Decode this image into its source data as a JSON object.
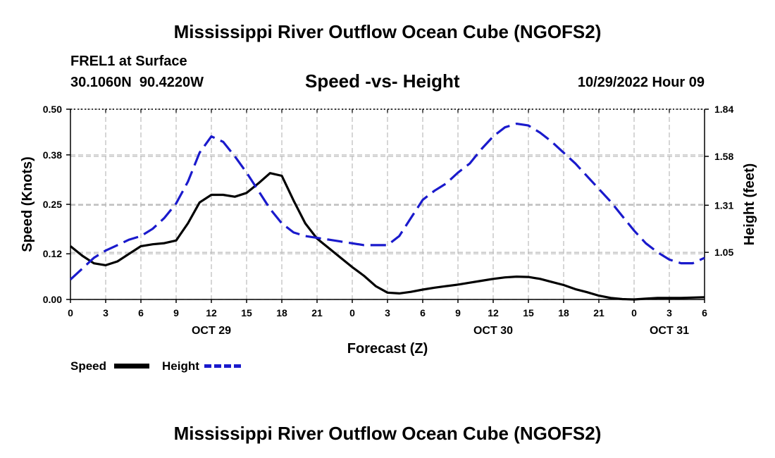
{
  "page": {
    "title_top": "Mississippi River Outflow Ocean Cube (NGOFS2)",
    "title_bottom": "Mississippi River Outflow Ocean Cube (NGOFS2)",
    "station": "FREL1 at Surface",
    "coords": "30.1060N  90.4220W",
    "datetime": "10/29/2022 Hour 09"
  },
  "chart_data": {
    "type": "line",
    "title": "Speed -vs- Height",
    "xlabel": "Forecast (Z)",
    "ylabel": "Speed (Knots)",
    "y2label": "Height (feet)",
    "ylim": [
      0,
      0.5
    ],
    "y2lim": [
      0.79,
      1.84
    ],
    "yticks": [
      "0.00",
      "0.12",
      "0.25",
      "0.38",
      "0.50"
    ],
    "y2ticks": [
      "1.05",
      "1.31",
      "1.58",
      "1.84"
    ],
    "xlim": [
      0,
      54
    ],
    "xticks": [
      "0",
      "3",
      "6",
      "9",
      "12",
      "15",
      "18",
      "21",
      "0",
      "3",
      "6",
      "9",
      "12",
      "15",
      "18",
      "21",
      "0",
      "3",
      "6"
    ],
    "day_labels": [
      {
        "label": "OCT 29",
        "hour": 12
      },
      {
        "label": "OCT 30",
        "hour": 36
      },
      {
        "label": "OCT 31",
        "hour": 51
      }
    ],
    "grid": true,
    "legend": [
      "Speed",
      "Height"
    ],
    "series": [
      {
        "name": "Speed",
        "axis": "left",
        "color": "#000000",
        "dash": "solid",
        "x": [
          0,
          1,
          2,
          3,
          4,
          5,
          6,
          7,
          8,
          9,
          10,
          11,
          12,
          13,
          14,
          15,
          16,
          17,
          18,
          19,
          20,
          21,
          22,
          23,
          24,
          25,
          26,
          27,
          28,
          29,
          30,
          31,
          32,
          33,
          34,
          35,
          36,
          37,
          38,
          39,
          40,
          41,
          42,
          43,
          44,
          45,
          46,
          47,
          48,
          49,
          50,
          51,
          52,
          53,
          54
        ],
        "values": [
          0.14,
          0.115,
          0.095,
          0.09,
          0.1,
          0.12,
          0.14,
          0.145,
          0.148,
          0.155,
          0.2,
          0.255,
          0.275,
          0.275,
          0.27,
          0.28,
          0.305,
          0.332,
          0.325,
          0.26,
          0.2,
          0.16,
          0.135,
          0.11,
          0.085,
          0.062,
          0.035,
          0.018,
          0.016,
          0.02,
          0.026,
          0.031,
          0.035,
          0.039,
          0.044,
          0.049,
          0.054,
          0.058,
          0.06,
          0.059,
          0.054,
          0.046,
          0.038,
          0.027,
          0.019,
          0.01,
          0.004,
          0.001,
          0.0,
          0.002,
          0.004,
          0.004,
          0.004,
          0.005,
          0.006
        ]
      },
      {
        "name": "Height",
        "axis": "right",
        "color": "#1a1acc",
        "dash": "dashed",
        "x": [
          0,
          1,
          2,
          3,
          4,
          5,
          6,
          7,
          8,
          9,
          10,
          11,
          12,
          13,
          14,
          15,
          16,
          17,
          18,
          19,
          20,
          21,
          22,
          23,
          24,
          25,
          26,
          27,
          28,
          29,
          30,
          31,
          32,
          33,
          34,
          35,
          36,
          37,
          38,
          39,
          40,
          41,
          42,
          43,
          44,
          45,
          46,
          47,
          48,
          49,
          50,
          51,
          52,
          53,
          54
        ],
        "values": [
          0.9,
          0.96,
          1.02,
          1.06,
          1.09,
          1.12,
          1.14,
          1.18,
          1.24,
          1.32,
          1.44,
          1.6,
          1.69,
          1.66,
          1.58,
          1.49,
          1.39,
          1.29,
          1.21,
          1.16,
          1.14,
          1.13,
          1.12,
          1.11,
          1.1,
          1.09,
          1.09,
          1.09,
          1.14,
          1.24,
          1.34,
          1.39,
          1.43,
          1.49,
          1.54,
          1.62,
          1.69,
          1.74,
          1.76,
          1.75,
          1.71,
          1.66,
          1.6,
          1.54,
          1.47,
          1.4,
          1.33,
          1.25,
          1.17,
          1.1,
          1.05,
          1.01,
          0.99,
          0.99,
          1.02
        ]
      }
    ]
  }
}
